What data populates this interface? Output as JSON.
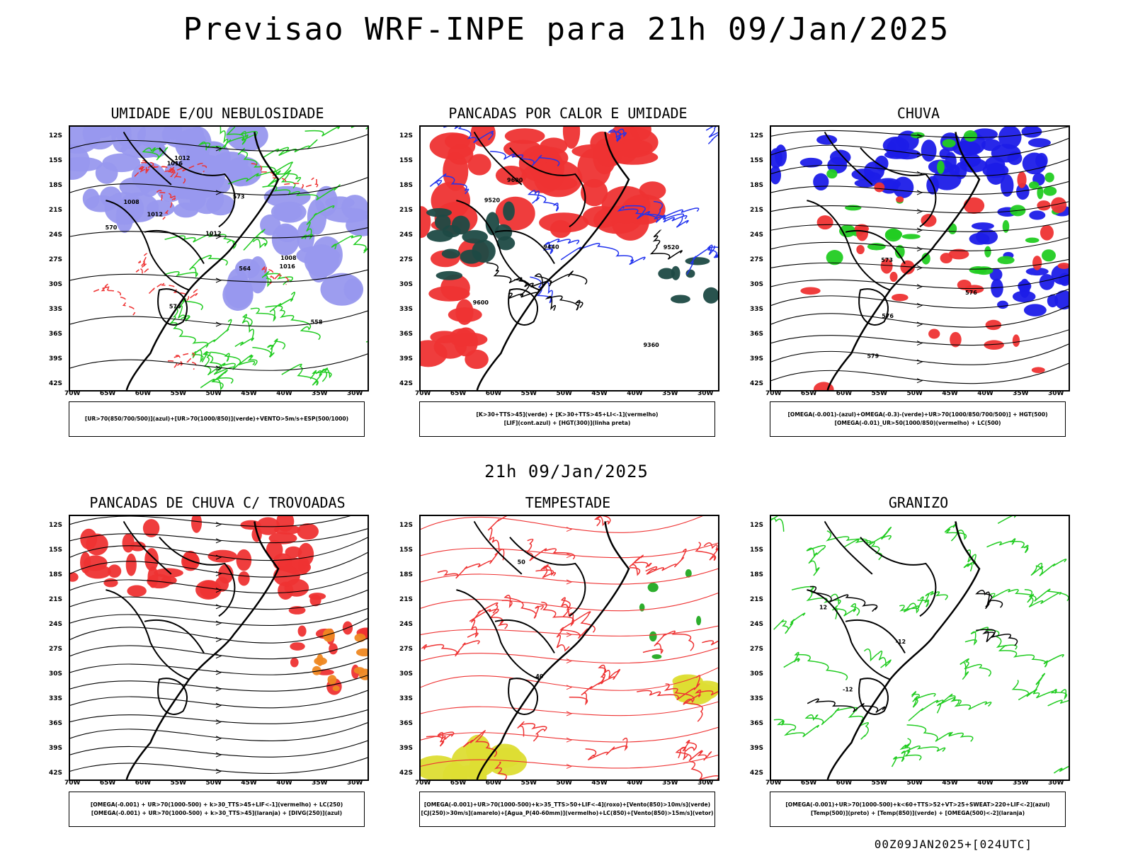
{
  "title": "Previsao WRF-INPE  para 21h 09/Jan/2025",
  "mid_title": "21h 09/Jan/2025",
  "footer": "00Z09JAN2025+[024UTC]",
  "lat_labels": [
    "12S",
    "15S",
    "18S",
    "21S",
    "24S",
    "27S",
    "30S",
    "33S",
    "36S",
    "39S",
    "42S"
  ],
  "lon_labels": [
    "70W",
    "65W",
    "60W",
    "55W",
    "50W",
    "45W",
    "40W",
    "35W",
    "30W"
  ],
  "panels": [
    {
      "title": "UMIDADE E/OU NEBULOSIDADE",
      "legend": [
        "[UR>70(850/700/500)](azul)+[UR>70(1000/850)](verde)+VENTO>5m/s+ESP(500/1000)"
      ],
      "contour_labels": [
        "1012",
        "1008",
        "1012",
        "1016",
        "576",
        "573",
        "570",
        "564",
        "558",
        "1016",
        "1012",
        "1008"
      ],
      "colors": {
        "fill": "#9898ee",
        "line1": "#22cc22",
        "line2": "#ee3333"
      }
    },
    {
      "title": "PANCADAS POR CALOR E UMIDADE",
      "legend": [
        "[K>30+TTS>45](verde) + [K>30+TTS>45+LI<-1](vermelho)",
        "[LIF](cont.azul) + [HGT(300)](linha preta)"
      ],
      "contour_labels": [
        "9600",
        "9520",
        "9440",
        "9360",
        "9600",
        "9520"
      ],
      "colors": {
        "fill": "#ee3333",
        "fill2": "#1e4a44",
        "line1": "#2233ee"
      }
    },
    {
      "title": "CHUVA",
      "legend": [
        "[OMEGA(-0.001)-(azul)+OMEGA(-0.3)-(verde)+UR>70(1000/850/700/500)] + HGT(500)",
        "[OMEGA(-0.01)_UR>50(1000/850)(vermelho) + LC(500)"
      ],
      "contour_labels": [
        "579",
        "576",
        "573",
        "576"
      ],
      "colors": {
        "fill": "#1c1ce8",
        "fill2": "#22cc22",
        "fill3": "#ee3333"
      }
    },
    {
      "title": "PANCADAS DE CHUVA C/ TROVOADAS",
      "legend": [
        "[OMEGA(-0.001) + UR>70(1000-500) + k>30_TTS>45+LIF<-1](vermelho) + LC(250)",
        "[OMEGA(-0.001) + UR>70(1000-500) + k>30_TTS>45](laranja) + [DIVG(250)](azul)"
      ],
      "contour_labels": [],
      "colors": {
        "fill": "#ee3333",
        "fill2": "#ee8822"
      }
    },
    {
      "title": "TEMPESTADE",
      "legend": [
        "[OMEGA(-0.001)+UR>70(1000-500)+k>35_TTS>50+LIF<-4](roxo)+[Vento(850)>10m/s](verde)",
        "[CJ(250)>30m/s](amarelo)+[Agua_P(40-60mm)](vermelho)+LC(850)+[Vento(850)>15m/s](vetor)"
      ],
      "contour_labels": [
        "40",
        "50"
      ],
      "colors": {
        "fill": "#dddd33",
        "line1": "#ee3333",
        "fill2": "#22aa22"
      }
    },
    {
      "title": "GRANIZO",
      "legend": [
        "[OMEGA(-0.001)+UR>70(1000-500)+k<60+TTS>52+VT>25+SWEAT>220+LIF<-2](azul)",
        "[Temp(500)](preto) + [Temp(850)](verde) + [OMEGA(500)<-2](laranja)"
      ],
      "contour_labels": [
        "-12",
        "12",
        "-12"
      ],
      "colors": {
        "line1": "#22cc22"
      }
    }
  ]
}
